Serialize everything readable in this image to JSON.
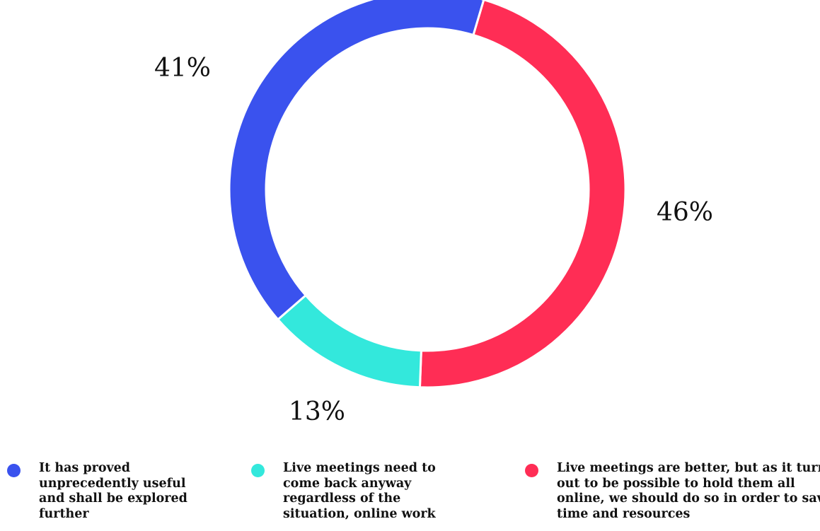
{
  "chart_data": {
    "type": "pie",
    "donut": true,
    "title": "",
    "slices": [
      {
        "label": "Live meetings are better, but as it turned out to be possible to hold them all online, we should do so in order to save time and resources",
        "value": 46,
        "display": "46%",
        "color": "#ff2d55"
      },
      {
        "label": "Live meetings need to come back anyway regardless of the situation, online work",
        "value": 13,
        "display": "13%",
        "color": "#33e8dc"
      },
      {
        "label": "It has proved unprecedently useful and shall be explored further",
        "value": 41,
        "display": "41%",
        "color": "#3a52ee"
      }
    ],
    "legend_placement": "bottom",
    "legend_order": [
      2,
      1,
      0
    ]
  }
}
